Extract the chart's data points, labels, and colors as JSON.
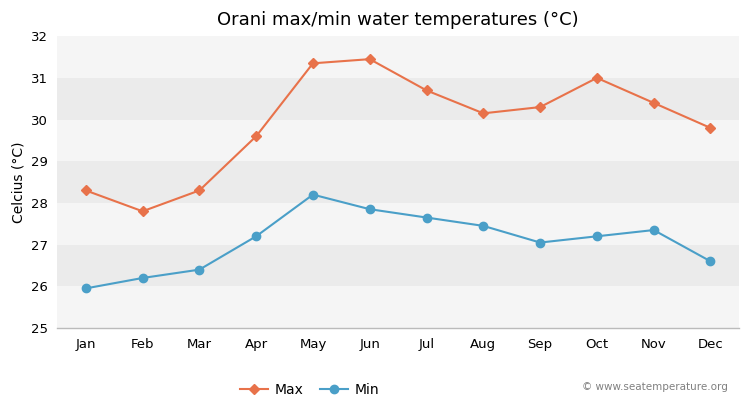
{
  "months": [
    "Jan",
    "Feb",
    "Mar",
    "Apr",
    "May",
    "Jun",
    "Jul",
    "Aug",
    "Sep",
    "Oct",
    "Nov",
    "Dec"
  ],
  "max_temps": [
    28.3,
    27.8,
    28.3,
    29.6,
    31.35,
    31.45,
    30.7,
    30.15,
    30.3,
    31.0,
    30.4,
    29.8
  ],
  "min_temps": [
    25.95,
    26.2,
    26.4,
    27.2,
    28.2,
    27.85,
    27.65,
    27.45,
    27.05,
    27.2,
    27.35,
    26.6
  ],
  "max_color": "#e8724a",
  "min_color": "#4a9fc8",
  "bg_color": "#ffffff",
  "plot_bg_color": "#ffffff",
  "band_color_light": "#ebebeb",
  "band_color_dark": "#f5f5f5",
  "title": "Orani max/min water temperatures (°C)",
  "ylabel": "Celcius (°C)",
  "ylim": [
    25,
    32
  ],
  "yticks": [
    25,
    26,
    27,
    28,
    29,
    30,
    31,
    32
  ],
  "watermark": "© www.seatemperature.org",
  "legend_max": "Max",
  "legend_min": "Min",
  "title_fontsize": 13,
  "label_fontsize": 10,
  "tick_fontsize": 9.5
}
